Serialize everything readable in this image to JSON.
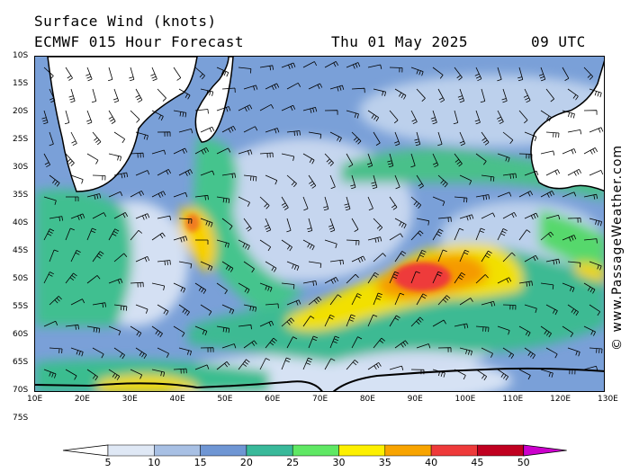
{
  "header": {
    "title": "Surface Wind (knots)",
    "model": "ECMWF 015 Hour Forecast",
    "date": "Thu 01 May 2025",
    "time": "09 UTC"
  },
  "credit": "© www.PassageWeather.com",
  "latitude_labels": [
    "10S",
    "15S",
    "20S",
    "25S",
    "30S",
    "35S",
    "40S",
    "45S",
    "50S",
    "55S",
    "60S",
    "65S",
    "70S",
    "75S"
  ],
  "longitude_labels": [
    "10E",
    "20E",
    "30E",
    "40E",
    "50E",
    "60E",
    "70E",
    "80E",
    "90E",
    "100E",
    "110E",
    "120E",
    "130E"
  ],
  "colorbar": {
    "labels": [
      "5",
      "10",
      "15",
      "20",
      "25",
      "30",
      "35",
      "40",
      "45",
      "50"
    ],
    "colors": [
      "#ffffff",
      "#dfe8f5",
      "#a8c0e4",
      "#6f96d4",
      "#39b99a",
      "#5fe864",
      "#fdf000",
      "#f8a400",
      "#ee3a3a",
      "#c00020",
      "#cc00cc"
    ]
  }
}
